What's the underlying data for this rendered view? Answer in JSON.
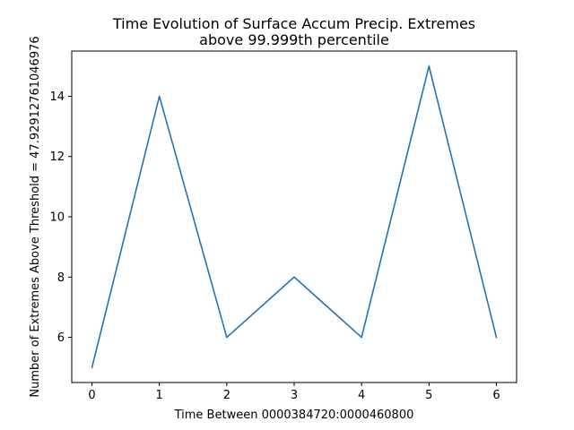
{
  "chart_data": {
    "type": "line",
    "title": [
      "Time Evolution of Surface Accum Precip. Extremes",
      "above 99.999th percentile"
    ],
    "xlabel": "Time Between 0000384720:0000460800",
    "ylabel": "Number of Extremes Above Threshold = 47.92912761046976",
    "x": [
      0,
      1,
      2,
      3,
      4,
      5,
      6
    ],
    "series": [
      {
        "values": [
          5,
          14,
          6,
          8,
          6,
          15,
          6
        ],
        "color": "#1f77b4"
      }
    ],
    "xlim": [
      -0.3,
      6.3
    ],
    "ylim": [
      4.5,
      15.5
    ],
    "xticks": [
      0,
      1,
      2,
      3,
      4,
      5,
      6
    ],
    "yticks": [
      6,
      8,
      10,
      12,
      14
    ],
    "grid": false,
    "legend": false
  }
}
